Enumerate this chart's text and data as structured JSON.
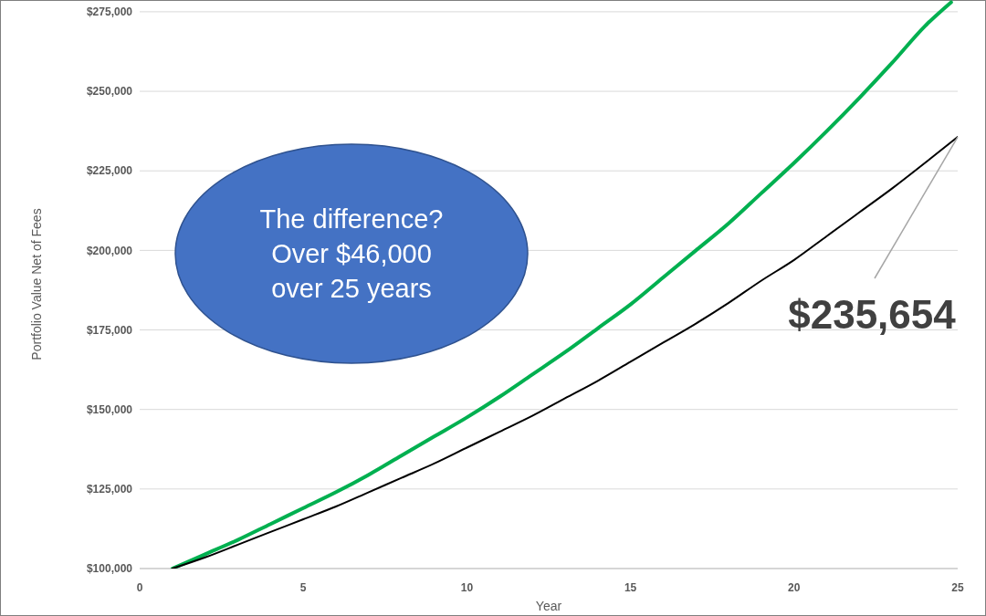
{
  "chart_data": {
    "type": "line",
    "xlabel": "Year",
    "ylabel": "Portfolio Value Net of Fees",
    "x": [
      1,
      2,
      3,
      4,
      5,
      6,
      7,
      8,
      9,
      10,
      11,
      12,
      13,
      14,
      15,
      16,
      17,
      18,
      19,
      20,
      21,
      22,
      23,
      24,
      25
    ],
    "series": [
      {
        "color": "#00b050",
        "x": [
          1,
          2,
          3,
          4,
          5,
          6,
          7,
          8,
          9,
          10,
          11,
          12,
          13,
          14,
          15,
          16,
          17,
          18,
          19,
          20,
          21,
          22,
          23,
          24,
          24.8
        ],
        "values": [
          100000,
          104500,
          109000,
          114000,
          119000,
          124000,
          129500,
          135500,
          141500,
          147500,
          154000,
          161000,
          168000,
          175500,
          183000,
          191500,
          200000,
          208500,
          218000,
          227500,
          237500,
          248000,
          259000,
          270500,
          278000
        ]
      },
      {
        "color": "#000000",
        "values": [
          100000,
          103500,
          107500,
          111500,
          115500,
          119500,
          124000,
          128500,
          133000,
          138000,
          143000,
          148000,
          153500,
          159000,
          165000,
          171000,
          177000,
          183500,
          190500,
          197000,
          204500,
          212000,
          219500,
          227500,
          235654
        ]
      }
    ],
    "xlim": [
      0,
      25
    ],
    "xticks": [
      0,
      5,
      10,
      15,
      20,
      25
    ],
    "ylim": [
      100000,
      278700
    ],
    "yticks": [
      {
        "value": 100000,
        "label": "$100,000"
      },
      {
        "value": 125000,
        "label": "$125,000"
      },
      {
        "value": 150000,
        "label": "$150,000"
      },
      {
        "value": 175000,
        "label": "$175,000"
      },
      {
        "value": 200000,
        "label": "$200,000"
      },
      {
        "value": 225000,
        "label": "$225,000"
      },
      {
        "value": 250000,
        "label": "$250,000"
      },
      {
        "value": 275000,
        "label": "$275,000"
      }
    ],
    "grid": "y",
    "marker": "none",
    "line_style": "solid",
    "annotations": [
      "The difference?\nOver $46,000\nover 25 years",
      {
        "text": "$235,654",
        "x": 25,
        "y": 235654
      }
    ]
  }
}
